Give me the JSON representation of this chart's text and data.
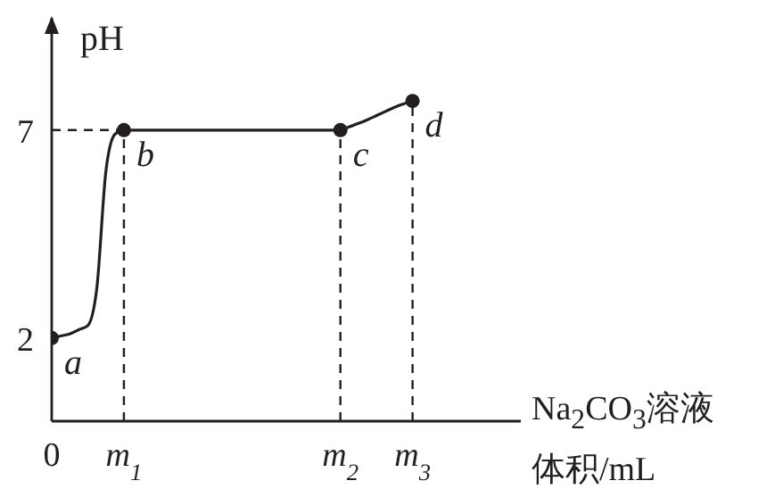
{
  "chart_data": {
    "type": "line",
    "ylabel": "pH",
    "xlabel": "Na$_{2}$CO$_{3}$溶液体积/mL",
    "categories": [
      "0",
      null,
      null,
      null,
      null,
      null,
      null,
      null,
      "m$_{1}$",
      null,
      null,
      null,
      null,
      null,
      null,
      null,
      null,
      null,
      null,
      null,
      null,
      null,
      null,
      null,
      null,
      null,
      null,
      null,
      null,
      null,
      null,
      null,
      "m$_{2}$",
      null,
      null,
      null,
      null,
      null,
      null,
      null,
      "m$_{3}$",
      null,
      null,
      null,
      null,
      null,
      null,
      null,
      null,
      null,
      null,
      null,
      null
    ],
    "ylim": [
      0,
      9.7
    ],
    "yticks": [
      2,
      7
    ],
    "grid": false,
    "legend": false,
    "series": [
      {
        "color": "#231f20",
        "marker": "none",
        "line_style": "solid",
        "values": [
          2,
          2.05,
          2.1,
          2.2,
          2.3,
          3.2,
          6.0,
          6.9,
          7,
          7,
          7,
          7,
          7,
          7,
          7,
          7,
          7,
          7,
          7,
          7,
          7,
          7,
          7,
          7,
          7,
          7,
          7,
          7,
          7,
          7,
          7,
          7,
          7,
          7.08,
          7.16,
          7.25,
          7.35,
          7.45,
          7.55,
          7.63,
          7.7,
          null,
          null,
          null,
          null,
          null,
          null,
          null,
          null,
          null,
          null,
          null,
          null
        ]
      },
      {
        "type": "scatter",
        "color": "#231f20",
        "marker": "circle",
        "x": [
          "0",
          "m$_{1}$",
          "m$_{2}$",
          "m$_{3}$"
        ],
        "values": [
          2,
          7,
          7,
          7.7
        ]
      }
    ],
    "ref_lines": [
      {
        "axis": "y",
        "value": 7,
        "line_style": "dashed",
        "color": "#231f20"
      },
      {
        "axis": "x",
        "value": "m$_{1}$",
        "line_style": "dashed",
        "color": "#231f20"
      },
      {
        "axis": "x",
        "value": "m$_{2}$",
        "line_style": "dashed",
        "color": "#231f20"
      },
      {
        "axis": "x",
        "value": "m$_{3}$",
        "line_style": "dashed",
        "color": "#231f20"
      }
    ],
    "annotations": [
      {
        "text": "a",
        "x": "0",
        "y": 2
      },
      {
        "text": "b",
        "x": "m$_{1}$",
        "y": 7
      },
      {
        "text": "c",
        "x": "m$_{2}$",
        "y": 7
      },
      {
        "text": "d",
        "x": "m$_{3}$",
        "y": 7.7
      }
    ]
  }
}
